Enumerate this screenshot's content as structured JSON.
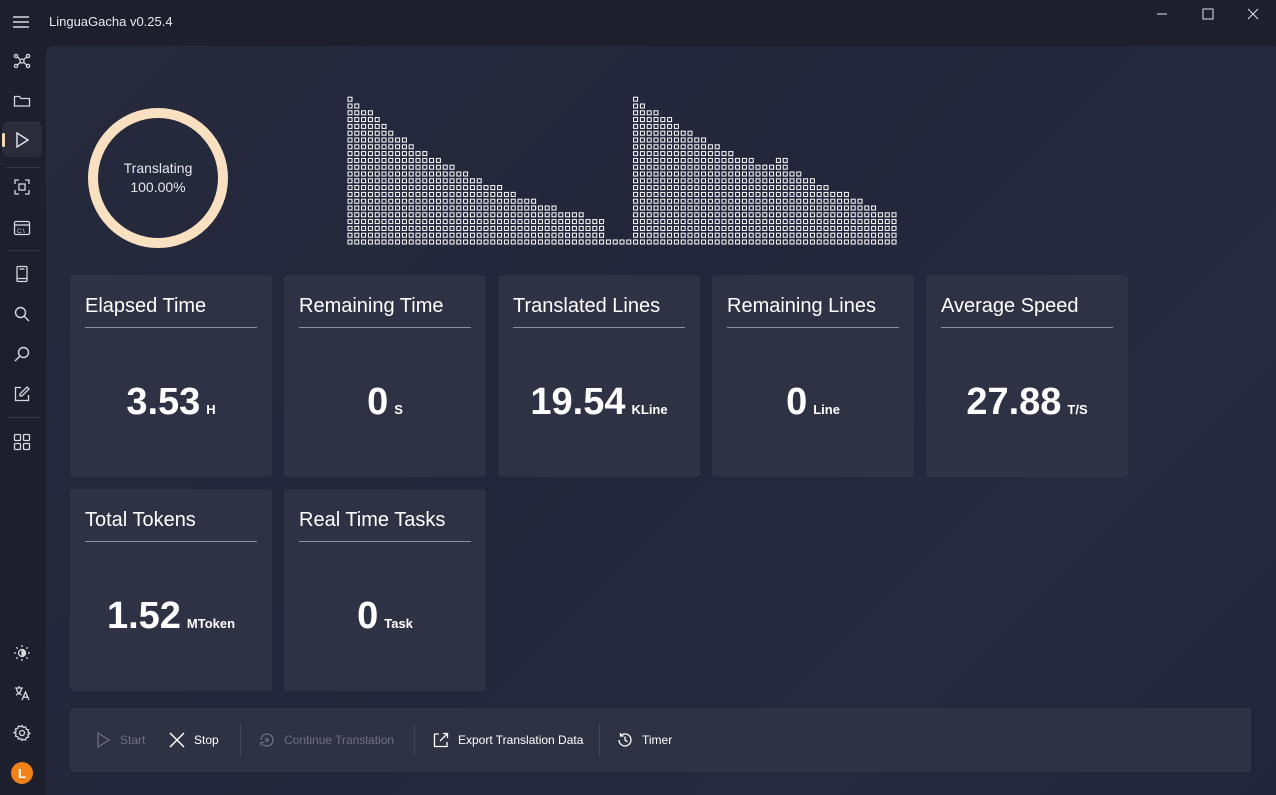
{
  "app": {
    "title": "LinguaGacha v0.25.4"
  },
  "window_controls": {
    "minimize": "minimize-icon",
    "maximize": "maximize-icon",
    "close": "close-icon"
  },
  "sidebar": {
    "items": [
      {
        "icon": "network-icon"
      },
      {
        "icon": "folder-icon"
      },
      {
        "icon": "play-icon",
        "active": true
      },
      {
        "icon": "frame-icon"
      },
      {
        "icon": "terminal-icon"
      },
      {
        "icon": "book-icon"
      },
      {
        "icon": "search-icon"
      },
      {
        "icon": "search-alt-icon"
      },
      {
        "icon": "edit-icon"
      },
      {
        "icon": "apps-icon"
      }
    ],
    "bottom": [
      {
        "icon": "theme-icon"
      },
      {
        "icon": "language-icon"
      },
      {
        "icon": "settings-icon"
      },
      {
        "icon": "avatar",
        "letter": "L"
      }
    ]
  },
  "progress": {
    "status": "Translating",
    "percent": "100.00%"
  },
  "cards": [
    {
      "title": "Elapsed Time",
      "value": "3.53",
      "unit": "H"
    },
    {
      "title": "Remaining Time",
      "value": "0",
      "unit": "S"
    },
    {
      "title": "Translated Lines",
      "value": "19.54",
      "unit": "KLine"
    },
    {
      "title": "Remaining Lines",
      "value": "0",
      "unit": "Line"
    },
    {
      "title": "Average Speed",
      "value": "27.88",
      "unit": "T/S"
    },
    {
      "title": "Total Tokens",
      "value": "1.52",
      "unit": "MToken"
    },
    {
      "title": "Real Time Tasks",
      "value": "0",
      "unit": "Task"
    }
  ],
  "commands": {
    "start": "Start",
    "stop": "Stop",
    "continue": "Continue Translation",
    "export": "Export Translation Data",
    "timer": "Timer"
  },
  "colors": {
    "accent": "#f9e0c0",
    "card_bg": "#2f3244",
    "window_bg": "#1d1f2c"
  }
}
